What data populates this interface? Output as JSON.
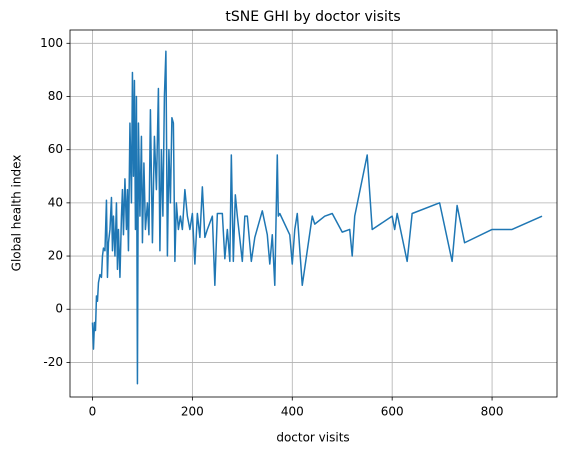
{
  "chart_data": {
    "type": "line",
    "title": "tSNE GHI by doctor visits",
    "xlabel": "doctor visits",
    "ylabel": "Global health index",
    "x": [
      0,
      2,
      4,
      6,
      8,
      10,
      12,
      15,
      18,
      20,
      22,
      25,
      28,
      30,
      32,
      35,
      38,
      40,
      42,
      45,
      48,
      50,
      52,
      55,
      58,
      60,
      62,
      65,
      68,
      70,
      72,
      75,
      78,
      80,
      82,
      84,
      86,
      88,
      90,
      92,
      95,
      98,
      100,
      103,
      106,
      110,
      113,
      116,
      120,
      124,
      128,
      132,
      135,
      138,
      141,
      144,
      147,
      150,
      153,
      156,
      159,
      162,
      165,
      168,
      172,
      176,
      180,
      185,
      190,
      195,
      200,
      205,
      210,
      215,
      220,
      225,
      230,
      240,
      245,
      250,
      260,
      265,
      270,
      275,
      278,
      282,
      286,
      290,
      300,
      305,
      310,
      318,
      325,
      340,
      350,
      355,
      360,
      365,
      370,
      372,
      375,
      395,
      400,
      405,
      410,
      420,
      440,
      445,
      465,
      480,
      500,
      515,
      520,
      525,
      550,
      560,
      600,
      605,
      610,
      630,
      640,
      695,
      720,
      730,
      745,
      800,
      840,
      900
    ],
    "values": [
      -5,
      -15,
      -5,
      -8,
      5,
      3,
      10,
      13,
      12,
      20,
      23,
      22,
      41,
      12,
      25,
      30,
      42,
      22,
      35,
      20,
      40,
      15,
      30,
      12,
      35,
      45,
      28,
      49,
      30,
      45,
      22,
      70,
      40,
      89,
      50,
      86,
      30,
      80,
      -28,
      70,
      35,
      65,
      25,
      55,
      30,
      40,
      28,
      75,
      25,
      65,
      45,
      83,
      22,
      60,
      35,
      80,
      97,
      20,
      60,
      40,
      72,
      70,
      18,
      40,
      30,
      35,
      30,
      45,
      35,
      30,
      36,
      17,
      36,
      27,
      46,
      27,
      30,
      35,
      9,
      36,
      36,
      19,
      30,
      18,
      58,
      18,
      43,
      35,
      18,
      35,
      35,
      18,
      27,
      37,
      28,
      17,
      28,
      9,
      58,
      35,
      36,
      28,
      17,
      30,
      36,
      9,
      35,
      32,
      35,
      36,
      29,
      30,
      20,
      35,
      58,
      30,
      35,
      30,
      36,
      18,
      36,
      40,
      18,
      39,
      25,
      30,
      30,
      35
    ],
    "color": "#1f77b4",
    "xlim": [
      -45,
      930
    ],
    "ylim": [
      -33,
      105
    ],
    "xticks": [
      0,
      200,
      400,
      600,
      800
    ],
    "yticks": [
      -20,
      0,
      20,
      40,
      60,
      80,
      100
    ],
    "grid": true
  }
}
